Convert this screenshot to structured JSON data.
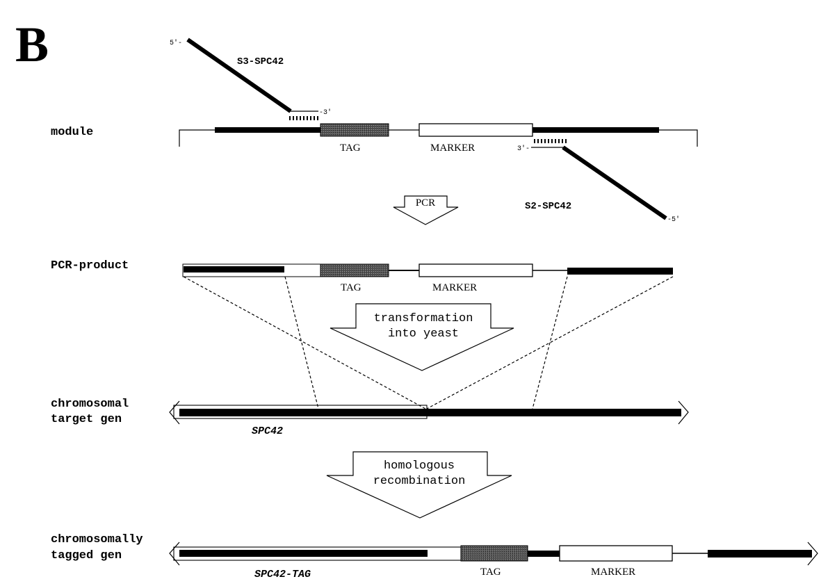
{
  "panel_label": "B",
  "primers": {
    "forward": {
      "name": "S3-SPC42",
      "end_5": "5'-",
      "end_3": "-3'"
    },
    "reverse": {
      "name": "S2-SPC42",
      "end_3": "3'-",
      "end_5": "-5'"
    }
  },
  "rows": {
    "module": "module",
    "pcr_product": "PCR-product",
    "target_line1": "chromosomal",
    "target_line2": "target gen",
    "tagged_line1": "chromosomally",
    "tagged_line2": "tagged gen"
  },
  "boxes": {
    "tag": "TAG",
    "marker": "MARKER"
  },
  "genes": {
    "target": "SPC42",
    "tagged": "SPC42-TAG"
  },
  "steps": {
    "pcr": "PCR",
    "transformation_line1": "transformation",
    "transformation_line2": "into yeast",
    "recombination_line1": "homologous",
    "recombination_line2": "recombination"
  },
  "colors": {
    "ink": "#000000",
    "tag_fill": "#4a4a4a",
    "background": "#ffffff"
  }
}
